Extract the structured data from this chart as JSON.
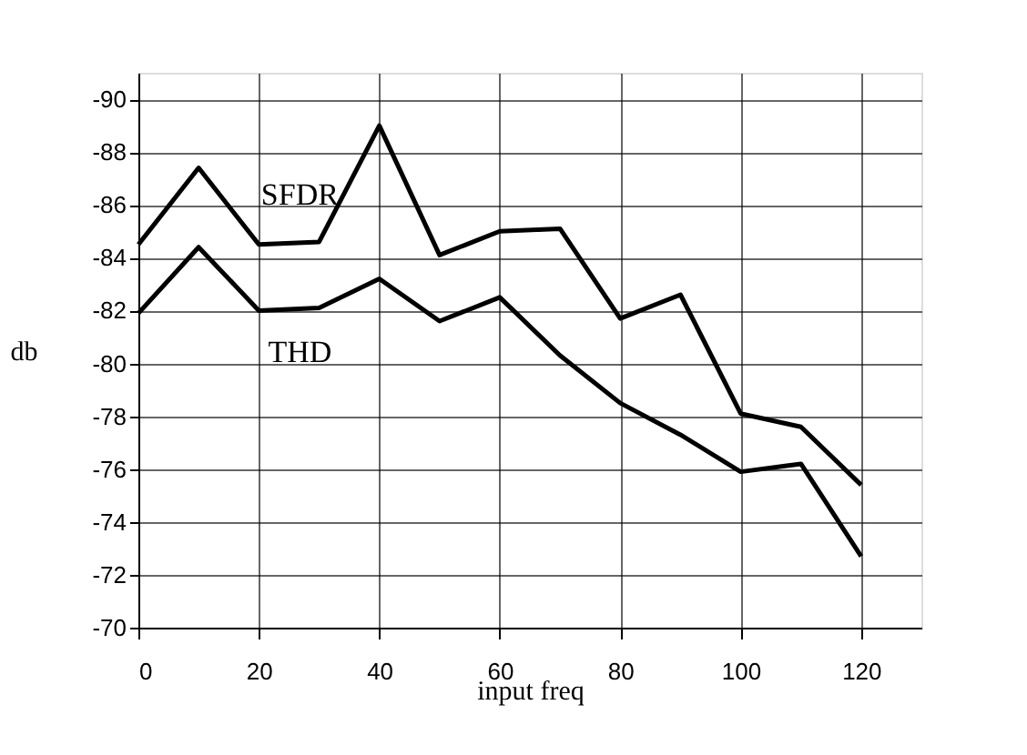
{
  "chart_data": {
    "type": "line",
    "xlabel": "input freq",
    "ylabel": "db",
    "x": [
      0,
      10,
      20,
      30,
      40,
      50,
      60,
      70,
      80,
      90,
      100,
      110,
      120
    ],
    "series": [
      {
        "name": "SFDR",
        "color": "#000000",
        "values": [
          -84.5,
          -87.4,
          -84.5,
          -84.6,
          -89.0,
          -84.1,
          -85.0,
          -85.1,
          -81.7,
          -82.6,
          -78.1,
          -77.6,
          -75.4
        ]
      },
      {
        "name": "THD",
        "color": "#000000",
        "values": [
          -81.9,
          -84.4,
          -82.0,
          -82.1,
          -83.2,
          -81.6,
          -82.5,
          -80.3,
          -78.5,
          -77.3,
          -75.9,
          -76.2,
          -72.7
        ]
      }
    ],
    "xlim": [
      0,
      130
    ],
    "xticks": [
      0,
      20,
      40,
      60,
      80,
      100,
      120
    ],
    "ylim": [
      -70,
      -91
    ],
    "yticks": [
      -90,
      -88,
      -86,
      -84,
      -82,
      -80,
      -78,
      -76,
      -74,
      -72,
      -70
    ],
    "grid": true,
    "legend": false,
    "marker": "none",
    "line_style": "solid"
  }
}
